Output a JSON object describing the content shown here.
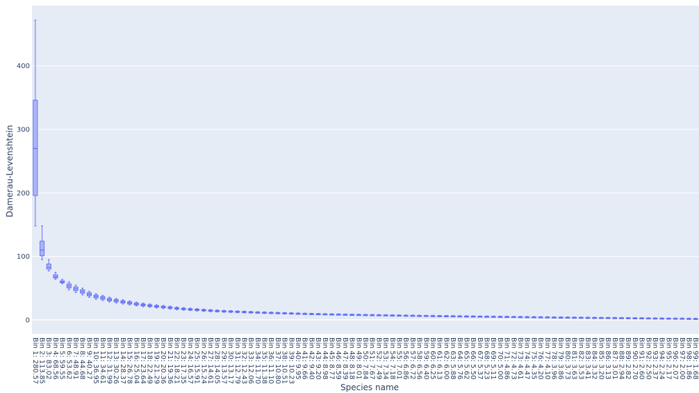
{
  "chart_data": {
    "type": "box",
    "xlabel": "Species name",
    "ylabel": "Damerau-Levenshtein",
    "ylim": [
      -22,
      495
    ],
    "yticks": [
      0,
      100,
      200,
      300,
      400
    ],
    "grid": true,
    "colors": {
      "plot_bg": "#e5ecf6",
      "grid": "#ffffff",
      "box_fill": "#aeb5f7",
      "box_line": "#636efa",
      "text": "#2a3f5f"
    },
    "first_boxes": [
      {
        "min": 148,
        "q1": 196,
        "median": 270,
        "q3": 346,
        "max": 472
      },
      {
        "min": 95,
        "q1": 101,
        "median": 110,
        "q3": 124,
        "max": 148
      },
      {
        "min": 77,
        "q1": 80,
        "median": 83,
        "q3": 88,
        "max": 95
      },
      {
        "min": 64,
        "q1": 66,
        "median": 68,
        "q3": 71,
        "max": 75
      },
      {
        "min": 57,
        "q1": 58.5,
        "median": 60,
        "q3": 61.5,
        "max": 64
      }
    ],
    "categories": [
      "Bin 1: 280.57",
      "Bin 2: 113.85",
      "Bin 3: 83.02",
      "Bin 4: 68.56",
      "Bin 5: 59.55",
      "Bin 6: 53.62",
      "Bin 7: 48.91",
      "Bin 8: 44.68",
      "Bin 9: 40.27",
      "Bin 10: 36.95",
      "Bin 11: 34.61",
      "Bin 12: 31.99",
      "Bin 13: 30.26",
      "Bin 14: 28.37",
      "Bin 15: 26.78",
      "Bin 16: 25.04",
      "Bin 17: 23.64",
      "Bin 18: 22.49",
      "Bin 19: 21.29",
      "Bin 20: 20.36",
      "Bin 21: 19.36",
      "Bin 22: 18.21",
      "Bin 23: 17.35",
      "Bin 24: 16.57",
      "Bin 25: 15.91",
      "Bin 26: 15.24",
      "Bin 27: 14.61",
      "Bin 28: 14.05",
      "Bin 29: 13.57",
      "Bin 30: 13.17",
      "Bin 31: 12.79",
      "Bin 32: 12.43",
      "Bin 33: 12.06",
      "Bin 34: 11.70",
      "Bin 35: 11.38",
      "Bin 36: 11.10",
      "Bin 37: 10.80",
      "Bin 38: 10.51",
      "Bin 39: 10.23",
      "Bin 40: 9.95",
      "Bin 41: 9.66",
      "Bin 42: 9.40",
      "Bin 43: 9.20",
      "Bin 44: 8.98",
      "Bin 45: 8.77",
      "Bin 46: 8.59",
      "Bin 47: 8.39",
      "Bin 48: 8.18",
      "Bin 49: 8.01",
      "Bin 50: 7.84",
      "Bin 51: 7.67",
      "Bin 52: 7.49",
      "Bin 53: 7.34",
      "Bin 54: 7.18",
      "Bin 55: 7.01",
      "Bin 56: 6.86",
      "Bin 57: 6.72",
      "Bin 58: 6.56",
      "Bin 59: 6.40",
      "Bin 60: 6.25",
      "Bin 61: 6.13",
      "Bin 62: 6.00",
      "Bin 63: 5.88",
      "Bin 64: 5.76",
      "Bin 65: 5.62",
      "Bin 66: 5.50",
      "Bin 67: 5.37",
      "Bin 68: 5.23",
      "Bin 69: 5.11",
      "Bin 70: 5.00",
      "Bin 71: 4.86",
      "Bin 72: 4.73",
      "Bin 73: 4.61",
      "Bin 74: 4.47",
      "Bin 75: 4.35",
      "Bin 76: 4.20",
      "Bin 77: 4.10",
      "Bin 78: 3.96",
      "Bin 79: 3.86",
      "Bin 80: 3.73",
      "Bin 81: 3.63",
      "Bin 82: 3.53",
      "Bin 83: 3.41",
      "Bin 84: 3.32",
      "Bin 85: 3.20",
      "Bin 86: 3.13",
      "Bin 87: 3.01",
      "Bin 88: 2.94",
      "Bin 89: 2.82",
      "Bin 90: 2.70",
      "Bin 91: 2.60",
      "Bin 92: 2.50",
      "Bin 93: 2.37",
      "Bin 94: 2.24",
      "Bin 95: 2.17",
      "Bin 96: 2.07",
      "Bin 97: 2.00",
      "Bin 98: 1.86",
      "Bin 99: 1.68"
    ]
  }
}
